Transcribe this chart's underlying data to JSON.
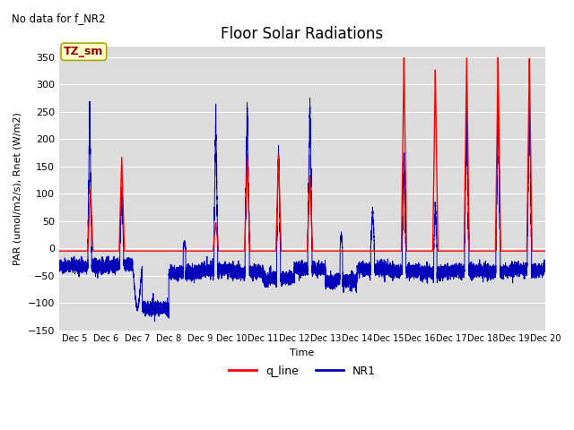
{
  "title": "Floor Solar Radiations",
  "top_left_text": "No data for f_NR2",
  "legend_label_text": "TZ_sm",
  "xlabel": "Time",
  "ylabel": "PAR (umol/m2/s), Rnet (W/m2)",
  "ylim": [
    -150,
    370
  ],
  "xlim_days": [
    4.5,
    20.0
  ],
  "xtick_positions": [
    5,
    6,
    7,
    8,
    9,
    10,
    11,
    12,
    13,
    14,
    15,
    16,
    17,
    18,
    19,
    20
  ],
  "xtick_labels": [
    "Dec 5",
    "Dec 6",
    "Dec 7",
    "Dec 8",
    "Dec 9",
    "Dec 10",
    "Dec 11",
    "Dec 12",
    "Dec 13",
    "Dec 14",
    "Dec 15",
    "Dec 16",
    "Dec 17",
    "Dec 18",
    "Dec 19",
    "Dec 20"
  ],
  "ytick_values": [
    -150,
    -100,
    -50,
    0,
    50,
    100,
    150,
    200,
    250,
    300,
    350
  ],
  "q_line_color": "#FF0000",
  "NR1_color": "#0000BB",
  "background_color": "#DCDCDC",
  "grid_color": "#FFFFFF",
  "legend_box_facecolor": "#FFFFCC",
  "legend_box_edgecolor": "#AAAA00",
  "legend_text_color": "#990000",
  "title_fontsize": 12,
  "axis_label_fontsize": 8,
  "tick_fontsize": 8,
  "q_line_baseline": -5.0,
  "NR1_baseline": -30.0,
  "NR1_night_value": -35.0
}
